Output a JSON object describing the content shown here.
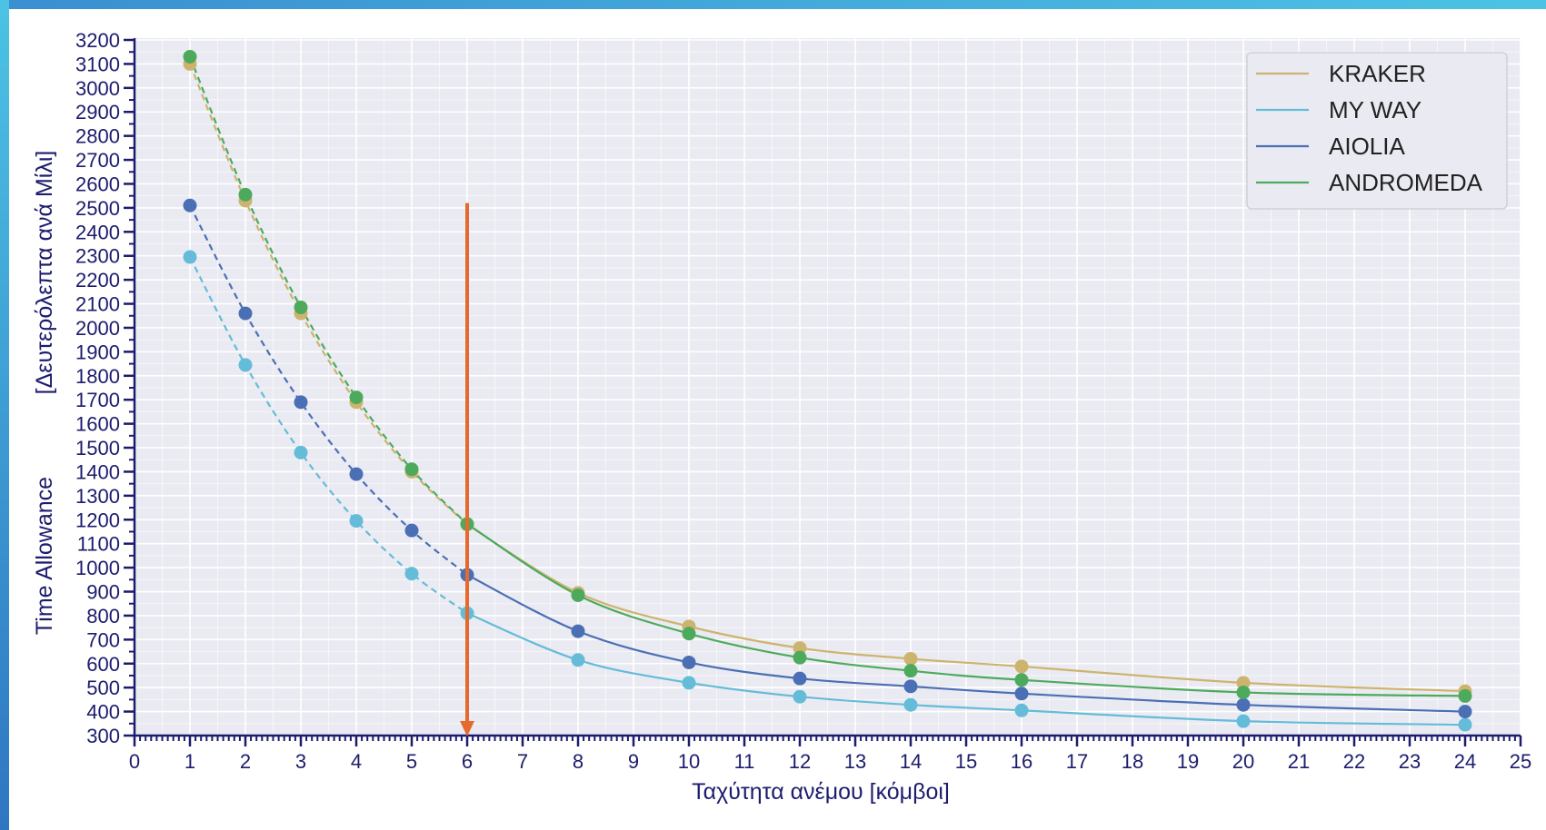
{
  "colors": {
    "plot_background": "#eaeaf2",
    "grid": "#ffffff",
    "axis": "#1c1c6e",
    "arrow": "#e66a2c"
  },
  "chart_data": {
    "type": "line",
    "xlabel": "Ταχύτητα ανέμου   [κόμβοι]",
    "ylabel_line1": "Time Allowance",
    "ylabel_line2": "[Δευτερόλεπτα ανά Μίλι]",
    "xlim": [
      0,
      25
    ],
    "ylim": [
      300,
      3200
    ],
    "x_ticks": [
      0,
      1,
      2,
      3,
      4,
      5,
      6,
      7,
      8,
      9,
      10,
      11,
      12,
      13,
      14,
      15,
      16,
      17,
      18,
      19,
      20,
      21,
      22,
      23,
      24,
      25
    ],
    "y_ticks": [
      300,
      400,
      500,
      600,
      700,
      800,
      900,
      1000,
      1100,
      1200,
      1300,
      1400,
      1500,
      1600,
      1700,
      1800,
      1900,
      2000,
      2100,
      2200,
      2300,
      2400,
      2500,
      2600,
      2700,
      2800,
      2900,
      3000,
      3100,
      3200
    ],
    "grid": true,
    "legend_position": "top-right",
    "dashed_until_x": 6,
    "x": [
      1,
      2,
      3,
      4,
      5,
      6,
      8,
      10,
      12,
      14,
      16,
      20,
      24
    ],
    "series": [
      {
        "name": "KRAKER",
        "color": "#cdb46e",
        "values": [
          3100,
          2530,
          2060,
          1690,
          1400,
          1180,
          895,
          755,
          665,
          620,
          588,
          520,
          485
        ]
      },
      {
        "name": "MY WAY",
        "color": "#64bcd8",
        "values": [
          2295,
          1845,
          1480,
          1195,
          975,
          810,
          615,
          520,
          462,
          428,
          405,
          360,
          345
        ]
      },
      {
        "name": "AIOLIA",
        "color": "#4a6fb5",
        "values": [
          2510,
          2060,
          1690,
          1390,
          1155,
          970,
          735,
          605,
          538,
          505,
          475,
          428,
          400
        ]
      },
      {
        "name": "ANDROMEDA",
        "color": "#4daa5c",
        "values": [
          3130,
          2555,
          2085,
          1710,
          1410,
          1182,
          885,
          725,
          625,
          570,
          532,
          480,
          465
        ]
      }
    ],
    "annotation": {
      "type": "vertical-arrow",
      "x": 6,
      "y_from": 2520,
      "y_to": 300
    }
  }
}
